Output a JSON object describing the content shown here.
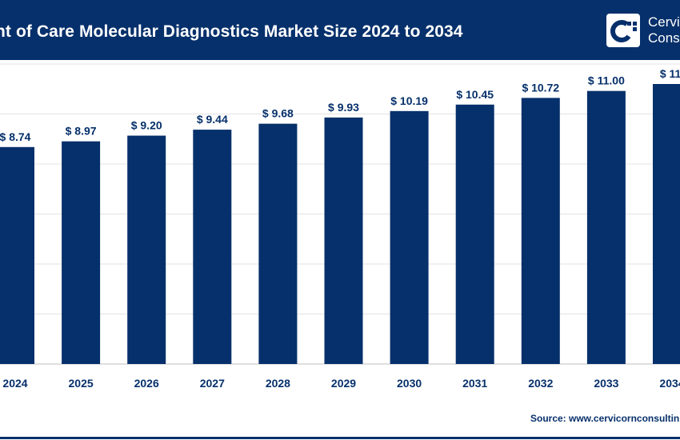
{
  "header": {
    "title": "nt of Care Molecular Diagnostics Market Size 2024 to 2034",
    "logo_text_line1": "Cervi",
    "logo_text_line2": "Consu",
    "logo_icon": "cervicorn-logo-icon"
  },
  "colors": {
    "brand": "#06306b",
    "bar": "#06306b",
    "grid": "#e3e3e3",
    "background": "#ffffff"
  },
  "chart_data": {
    "type": "bar",
    "categories": [
      "2024",
      "2025",
      "2026",
      "2027",
      "2028",
      "2029",
      "2030",
      "2031",
      "2032",
      "2033",
      "2034"
    ],
    "values": [
      8.74,
      8.97,
      9.2,
      9.44,
      9.68,
      9.93,
      10.19,
      10.45,
      10.72,
      11.0,
      11.28
    ],
    "data_labels": [
      "$ 8.74",
      "$ 8.97",
      "$ 9.20",
      "$ 9.44",
      "$ 9.68",
      "$ 9.93",
      "$ 10.19",
      "$ 10.45",
      "$ 10.72",
      "$ 11.00",
      "$ 11."
    ],
    "title": "nt of Care Molecular Diagnostics Market Size 2024 to 2034",
    "xlabel": "",
    "ylabel": "",
    "ylim": [
      0,
      11.28
    ],
    "grid": true,
    "legend": "none"
  },
  "source": "Source: www.cervicornconsultin"
}
